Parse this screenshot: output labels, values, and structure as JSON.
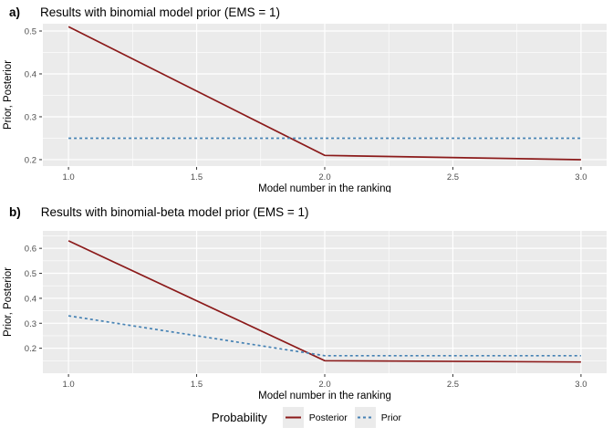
{
  "style": {
    "panel_bg": "#ebebeb",
    "grid_color": "#ffffff",
    "tick_color": "#333333",
    "tick_text_color": "#4d4d4d",
    "posterior_color": "#8b1a1a",
    "prior_color": "#4682b4"
  },
  "chart_data": [
    {
      "type": "line",
      "panel_label": "a)",
      "title": "Results with binomial model prior (EMS = 1)",
      "xlabel": "Model number in the ranking",
      "ylabel": "Prior, Posterior",
      "x": [
        1.0,
        2.0,
        3.0
      ],
      "series": [
        {
          "name": "Posterior",
          "values": [
            0.51,
            0.21,
            0.2
          ],
          "color": "#8b1a1a",
          "dash": "solid"
        },
        {
          "name": "Prior",
          "values": [
            0.25,
            0.25,
            0.25
          ],
          "color": "#4682b4",
          "dash": "dashed"
        }
      ],
      "xlim": [
        0.9,
        3.1
      ],
      "ylim": [
        0.185,
        0.517
      ],
      "xticks": [
        1.0,
        1.5,
        2.0,
        2.5,
        3.0
      ],
      "xtick_labels": [
        "1.0",
        "1.5",
        "2.0",
        "2.5",
        "3.0"
      ],
      "xticks_minor": [
        1.25,
        1.75,
        2.25,
        2.75
      ],
      "yticks": [
        0.2,
        0.3,
        0.4,
        0.5
      ],
      "ytick_labels": [
        "0.2",
        "0.3",
        "0.4",
        "0.5"
      ],
      "yticks_minor": [
        0.25,
        0.35,
        0.45
      ],
      "grid": true,
      "legend_position": "bottom"
    },
    {
      "type": "line",
      "panel_label": "b)",
      "title": "Results with binomial-beta model prior (EMS = 1)",
      "xlabel": "Model number in the ranking",
      "ylabel": "Prior, Posterior",
      "x": [
        1.0,
        2.0,
        3.0
      ],
      "series": [
        {
          "name": "Posterior",
          "values": [
            0.63,
            0.15,
            0.145
          ],
          "color": "#8b1a1a",
          "dash": "solid"
        },
        {
          "name": "Prior",
          "values": [
            0.33,
            0.17,
            0.17
          ],
          "color": "#4682b4",
          "dash": "dashed"
        }
      ],
      "xlim": [
        0.9,
        3.1
      ],
      "ylim": [
        0.1,
        0.67
      ],
      "xticks": [
        1.0,
        1.5,
        2.0,
        2.5,
        3.0
      ],
      "xtick_labels": [
        "1.0",
        "1.5",
        "2.0",
        "2.5",
        "3.0"
      ],
      "xticks_minor": [
        1.25,
        1.75,
        2.25,
        2.75
      ],
      "yticks": [
        0.2,
        0.3,
        0.4,
        0.5,
        0.6
      ],
      "ytick_labels": [
        "0.2",
        "0.3",
        "0.4",
        "0.5",
        "0.6"
      ],
      "yticks_minor": [
        0.15,
        0.25,
        0.35,
        0.45,
        0.55,
        0.65
      ],
      "grid": true,
      "legend_position": "bottom"
    }
  ],
  "legend": {
    "title": "Probability",
    "items": [
      {
        "label": "Posterior",
        "color": "#8b1a1a",
        "dash": "solid"
      },
      {
        "label": "Prior",
        "color": "#4682b4",
        "dash": "dashed"
      }
    ]
  }
}
